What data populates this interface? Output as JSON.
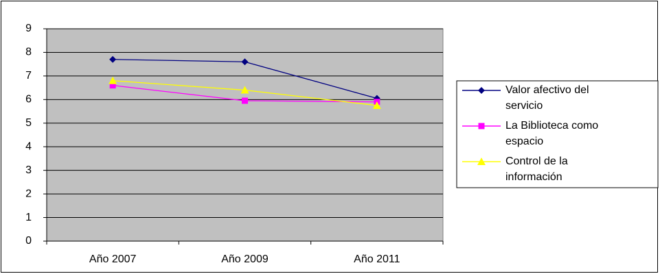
{
  "chart_data": {
    "type": "line",
    "categories": [
      "Año 2007",
      "Año 2009",
      "Año 2011"
    ],
    "series": [
      {
        "name": "Valor afectivo del servicio",
        "color": "#000080",
        "marker": "diamond",
        "values": [
          7.7,
          7.6,
          6.05
        ]
      },
      {
        "name": "La Biblioteca como espacio",
        "color": "#ff00ff",
        "marker": "square",
        "values": [
          6.6,
          5.95,
          5.9
        ]
      },
      {
        "name": "Control de la información",
        "color": "#ffff00",
        "marker": "triangle",
        "values": [
          6.8,
          6.4,
          5.75
        ]
      }
    ],
    "ylim": [
      0,
      9
    ],
    "yticks": [
      0,
      1,
      2,
      3,
      4,
      5,
      6,
      7,
      8,
      9
    ],
    "grid": true,
    "legend": "right"
  }
}
